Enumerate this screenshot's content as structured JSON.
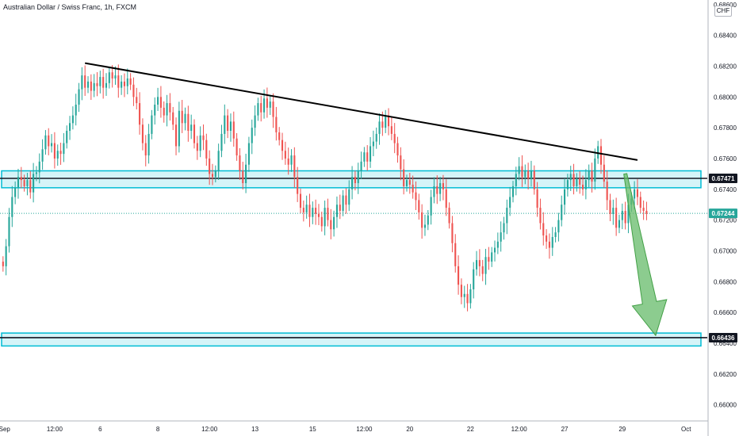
{
  "header": {
    "title": "Australian Dollar / Swiss Franc, 1h, FXCM",
    "currency_badge": "CHF"
  },
  "chart_data": {
    "type": "candlestick",
    "ylim": [
      0.659,
      0.6863
    ],
    "y_ticks": [
      "0.68600",
      "0.68400",
      "0.68200",
      "0.68000",
      "0.67800",
      "0.67600",
      "0.67400",
      "0.67200",
      "0.67000",
      "0.66800",
      "0.66600",
      "0.66400",
      "0.66200",
      "0.66000"
    ],
    "y_tick_values": [
      0.686,
      0.684,
      0.682,
      0.68,
      0.678,
      0.676,
      0.674,
      0.672,
      0.67,
      0.668,
      0.666,
      0.664,
      0.662,
      0.66
    ],
    "x_ticks": [
      {
        "label": "Sep",
        "t": 0.5
      },
      {
        "label": "12:00",
        "t": 17
      },
      {
        "label": "6",
        "t": 32
      },
      {
        "label": "8",
        "t": 51
      },
      {
        "label": "12:00",
        "t": 68
      },
      {
        "label": "13",
        "t": 83
      },
      {
        "label": "15",
        "t": 102
      },
      {
        "label": "12:00",
        "t": 119
      },
      {
        "label": "20",
        "t": 134
      },
      {
        "label": "22",
        "t": 154
      },
      {
        "label": "12:00",
        "t": 170
      },
      {
        "label": "27",
        "t": 185
      },
      {
        "label": "29",
        "t": 204
      },
      {
        "label": "Oct",
        "t": 225
      }
    ],
    "x_range": [
      -1,
      232
    ],
    "closes": [
      0.669,
      0.6703,
      0.6722,
      0.6735,
      0.6741,
      0.6748,
      0.6746,
      0.6742,
      0.6746,
      0.6738,
      0.675,
      0.6751,
      0.6758,
      0.6766,
      0.6775,
      0.6768,
      0.677,
      0.676,
      0.6765,
      0.6763,
      0.677,
      0.6778,
      0.6783,
      0.6788,
      0.6795,
      0.6805,
      0.6814,
      0.6806,
      0.681,
      0.6804,
      0.6809,
      0.6807,
      0.6813,
      0.6806,
      0.6809,
      0.6816,
      0.6812,
      0.6814,
      0.6806,
      0.681,
      0.6807,
      0.6812,
      0.6808,
      0.68,
      0.6796,
      0.6782,
      0.677,
      0.6762,
      0.6776,
      0.6788,
      0.6795,
      0.68,
      0.6793,
      0.6788,
      0.6796,
      0.679,
      0.6782,
      0.6768,
      0.6791,
      0.6783,
      0.6789,
      0.6778,
      0.6782,
      0.677,
      0.6765,
      0.6775,
      0.6772,
      0.676,
      0.675,
      0.6748,
      0.6752,
      0.6765,
      0.6776,
      0.6788,
      0.6778,
      0.6784,
      0.6773,
      0.6762,
      0.6752,
      0.6744,
      0.6756,
      0.677,
      0.678,
      0.6788,
      0.6796,
      0.679,
      0.6799,
      0.6793,
      0.6797,
      0.6787,
      0.6777,
      0.6772,
      0.6765,
      0.676,
      0.6756,
      0.6762,
      0.6748,
      0.6737,
      0.6728,
      0.6725,
      0.673,
      0.6722,
      0.6728,
      0.6724,
      0.6722,
      0.6716,
      0.6728,
      0.672,
      0.6714,
      0.6722,
      0.673,
      0.6726,
      0.6736,
      0.673,
      0.674,
      0.6748,
      0.6744,
      0.6752,
      0.6758,
      0.6764,
      0.6758,
      0.6768,
      0.6771,
      0.6776,
      0.6784,
      0.678,
      0.6788,
      0.6781,
      0.6776,
      0.677,
      0.6762,
      0.6753,
      0.6742,
      0.6746,
      0.6743,
      0.6738,
      0.6733,
      0.6725,
      0.6715,
      0.6717,
      0.6723,
      0.6735,
      0.6742,
      0.6737,
      0.6744,
      0.674,
      0.6728,
      0.6718,
      0.6705,
      0.669,
      0.6678,
      0.667,
      0.6672,
      0.6666,
      0.6675,
      0.6688,
      0.6694,
      0.669,
      0.6685,
      0.6696,
      0.6693,
      0.6699,
      0.6702,
      0.6706,
      0.6712,
      0.6718,
      0.6728,
      0.6735,
      0.6742,
      0.675,
      0.6755,
      0.6748,
      0.6752,
      0.6747,
      0.6752,
      0.674,
      0.6728,
      0.6718,
      0.671,
      0.6706,
      0.6702,
      0.6709,
      0.6712,
      0.672,
      0.673,
      0.674,
      0.6746,
      0.675,
      0.6742,
      0.6747,
      0.6743,
      0.674,
      0.6746,
      0.6752,
      0.6745,
      0.676,
      0.6768,
      0.6756,
      0.6745,
      0.6733,
      0.6724,
      0.6728,
      0.6715,
      0.672,
      0.6726,
      0.6718,
      0.673,
      0.6734,
      0.674,
      0.6735,
      0.6728,
      0.6726,
      0.6724
    ],
    "trendline": {
      "from": {
        "t": 27,
        "y": 0.6822
      },
      "to": {
        "t": 209,
        "y": 0.6759
      }
    },
    "zones": [
      {
        "y_top": 0.6752,
        "y_bottom": 0.6741
      },
      {
        "y_top": 0.66466,
        "y_bottom": 0.66382
      }
    ],
    "levels": [
      {
        "y": 0.67471,
        "label": "0.67471",
        "color": "#131722"
      },
      {
        "y": 0.66436,
        "label": "0.66436",
        "color": "#131722"
      },
      {
        "y": 0.67244,
        "label": "0.67244",
        "color": "#26a69a",
        "style": "dotted"
      }
    ],
    "arrow": {
      "from": {
        "t": 205,
        "y": 0.675
      },
      "to": {
        "t": 215,
        "y": 0.6645
      }
    },
    "colors": {
      "up": "#26a69a",
      "down": "#ef5350",
      "zone": "#00bcd4",
      "zone_fill": "#b2ebf2",
      "arrow": "#66bb6a"
    }
  }
}
